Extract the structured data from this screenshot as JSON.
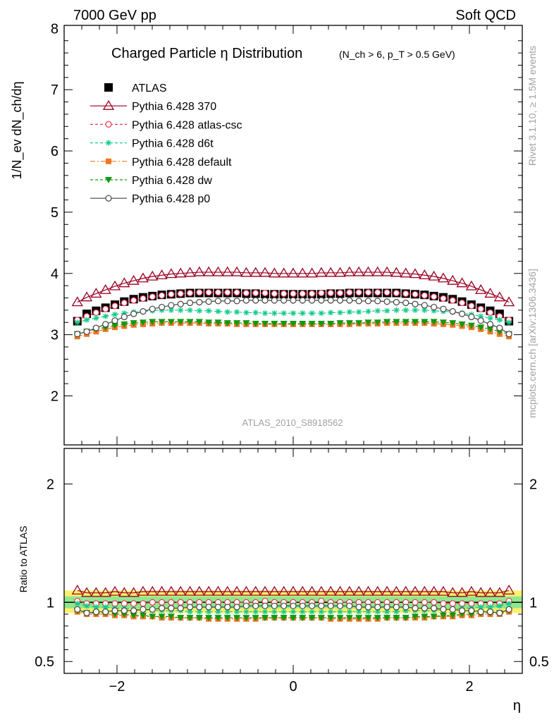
{
  "header": {
    "left": "7000 GeV pp",
    "right": "Soft QCD",
    "title": "Charged Particle η Distribution",
    "subtitle": "(N_ch > 6, p_T > 0.5 GeV)",
    "analysis": "ATLAS_2010_S8918562",
    "side_rivet": "Rivet 3.1.10, ≥ 1.5M events",
    "side_url": "mcplots.cern.ch [arXiv:1306.3436]"
  },
  "axes": {
    "ylabel_main": "1/N_ev dN_ch/dη",
    "ylabel_ratio": "Ratio to ATLAS",
    "xlabel": "η",
    "main_yticks": [
      "2",
      "3",
      "4",
      "5",
      "6",
      "7",
      "8"
    ],
    "ratio_yticks": [
      "0.5",
      "1",
      "2"
    ],
    "xticks": [
      "−2",
      "0",
      "2"
    ]
  },
  "colors": {
    "atlas": "#000000",
    "p370": "#990022",
    "atlas_csc": "#ee3355",
    "d6t": "#11cc88",
    "default": "#ee7722",
    "dw": "#119911",
    "p0": "#444444"
  },
  "chart_data": [
    {
      "type": "scatter",
      "title": "Charged Particle η Distribution",
      "xlabel": "η",
      "ylabel": "1/N_ev dN_ch/dη",
      "xlim": [
        -2.6,
        2.6
      ],
      "ylim": [
        1.2,
        8.05
      ],
      "series": [
        {
          "name": "ATLAS",
          "marker": "square",
          "values": [
            3.22,
            3.34,
            3.39,
            3.44,
            3.49,
            3.54,
            3.58,
            3.61,
            3.63,
            3.65,
            3.66,
            3.67,
            3.68,
            3.68,
            3.68,
            3.68,
            3.68,
            3.68,
            3.67,
            3.67,
            3.66,
            3.66,
            3.66,
            3.66,
            3.66,
            3.66,
            3.66,
            3.67,
            3.67,
            3.68,
            3.68,
            3.68,
            3.68,
            3.68,
            3.68,
            3.67,
            3.66,
            3.65,
            3.63,
            3.61,
            3.58,
            3.54,
            3.49,
            3.44,
            3.39,
            3.34,
            3.22
          ]
        },
        {
          "name": "Pythia 6.428 370",
          "marker": "triangle",
          "values": [
            3.53,
            3.61,
            3.67,
            3.73,
            3.79,
            3.84,
            3.88,
            3.92,
            3.95,
            3.97,
            3.99,
            4.0,
            4.01,
            4.02,
            4.02,
            4.02,
            4.02,
            4.02,
            4.01,
            4.01,
            4.01,
            4.0,
            4.0,
            4.0,
            4.0,
            4.0,
            4.01,
            4.01,
            4.01,
            4.02,
            4.02,
            4.02,
            4.02,
            4.02,
            4.01,
            4.0,
            3.99,
            3.97,
            3.95,
            3.92,
            3.88,
            3.84,
            3.79,
            3.73,
            3.67,
            3.61,
            3.53
          ]
        },
        {
          "name": "Pythia 6.428 atlas-csc",
          "marker": "circle-open",
          "values": [
            3.24,
            3.3,
            3.36,
            3.42,
            3.47,
            3.52,
            3.56,
            3.59,
            3.62,
            3.64,
            3.66,
            3.67,
            3.68,
            3.69,
            3.69,
            3.69,
            3.69,
            3.69,
            3.68,
            3.68,
            3.68,
            3.67,
            3.67,
            3.67,
            3.67,
            3.67,
            3.68,
            3.68,
            3.68,
            3.69,
            3.69,
            3.69,
            3.69,
            3.69,
            3.68,
            3.67,
            3.66,
            3.64,
            3.62,
            3.59,
            3.56,
            3.52,
            3.47,
            3.42,
            3.36,
            3.3,
            3.24
          ]
        },
        {
          "name": "Pythia 6.428 d6t",
          "marker": "star",
          "values": [
            3.2,
            3.24,
            3.27,
            3.3,
            3.33,
            3.35,
            3.37,
            3.38,
            3.39,
            3.4,
            3.4,
            3.4,
            3.4,
            3.39,
            3.39,
            3.38,
            3.37,
            3.37,
            3.36,
            3.36,
            3.35,
            3.35,
            3.35,
            3.35,
            3.35,
            3.35,
            3.35,
            3.36,
            3.36,
            3.37,
            3.37,
            3.38,
            3.39,
            3.39,
            3.4,
            3.4,
            3.4,
            3.4,
            3.39,
            3.38,
            3.37,
            3.35,
            3.33,
            3.3,
            3.27,
            3.24,
            3.2
          ]
        },
        {
          "name": "Pythia 6.428 default",
          "marker": "square-small",
          "values": [
            2.97,
            3.01,
            3.05,
            3.09,
            3.12,
            3.14,
            3.16,
            3.17,
            3.18,
            3.19,
            3.19,
            3.19,
            3.19,
            3.19,
            3.18,
            3.18,
            3.18,
            3.17,
            3.17,
            3.17,
            3.17,
            3.17,
            3.17,
            3.17,
            3.17,
            3.17,
            3.17,
            3.17,
            3.17,
            3.17,
            3.18,
            3.18,
            3.18,
            3.19,
            3.19,
            3.19,
            3.19,
            3.19,
            3.18,
            3.17,
            3.16,
            3.14,
            3.12,
            3.09,
            3.05,
            3.01,
            2.97
          ]
        },
        {
          "name": "Pythia 6.428 dw",
          "marker": "triangle-down",
          "values": [
            3.01,
            3.05,
            3.09,
            3.12,
            3.15,
            3.17,
            3.19,
            3.2,
            3.21,
            3.21,
            3.21,
            3.21,
            3.21,
            3.21,
            3.2,
            3.2,
            3.19,
            3.19,
            3.19,
            3.18,
            3.18,
            3.18,
            3.18,
            3.18,
            3.18,
            3.18,
            3.18,
            3.18,
            3.19,
            3.19,
            3.19,
            3.2,
            3.2,
            3.21,
            3.21,
            3.21,
            3.21,
            3.21,
            3.21,
            3.2,
            3.19,
            3.17,
            3.15,
            3.12,
            3.09,
            3.05,
            3.01
          ]
        },
        {
          "name": "Pythia 6.428 p0",
          "marker": "circle-open",
          "values": [
            3.01,
            3.05,
            3.11,
            3.17,
            3.23,
            3.29,
            3.34,
            3.38,
            3.42,
            3.45,
            3.48,
            3.5,
            3.52,
            3.53,
            3.54,
            3.55,
            3.55,
            3.55,
            3.56,
            3.56,
            3.56,
            3.56,
            3.56,
            3.56,
            3.56,
            3.56,
            3.56,
            3.56,
            3.56,
            3.56,
            3.55,
            3.55,
            3.55,
            3.54,
            3.53,
            3.52,
            3.5,
            3.48,
            3.45,
            3.42,
            3.38,
            3.34,
            3.29,
            3.23,
            3.17,
            3.11,
            3.01
          ]
        }
      ]
    },
    {
      "type": "scatter",
      "title": "",
      "xlabel": "η",
      "ylabel": "Ratio to ATLAS",
      "xlim": [
        -2.6,
        2.6
      ],
      "ylim": [
        0.4,
        2.3
      ],
      "band": {
        "inner": [
          0.95,
          1.05
        ],
        "outer": [
          0.91,
          1.1
        ]
      },
      "series": [
        {
          "name": "Pythia 6.428 370",
          "values": [
            1.1,
            1.08,
            1.08,
            1.08,
            1.09,
            1.08,
            1.08,
            1.09,
            1.09,
            1.09,
            1.09,
            1.09,
            1.09,
            1.09,
            1.09,
            1.09,
            1.09,
            1.09,
            1.09,
            1.09,
            1.09,
            1.09,
            1.09,
            1.09,
            1.09,
            1.09,
            1.09,
            1.09,
            1.09,
            1.09,
            1.09,
            1.09,
            1.09,
            1.09,
            1.09,
            1.09,
            1.09,
            1.09,
            1.09,
            1.09,
            1.08,
            1.08,
            1.09,
            1.08,
            1.08,
            1.08,
            1.1
          ]
        },
        {
          "name": "Pythia 6.428 atlas-csc",
          "values": [
            1.01,
            0.99,
            0.99,
            0.99,
            0.99,
            0.99,
            0.99,
            0.99,
            1.0,
            1.0,
            1.0,
            1.0,
            1.0,
            1.0,
            1.0,
            1.0,
            1.0,
            1.0,
            1.0,
            1.0,
            1.01,
            1.0,
            1.0,
            1.0,
            1.0,
            1.0,
            1.01,
            1.0,
            1.0,
            1.0,
            1.0,
            1.0,
            1.0,
            1.0,
            1.0,
            1.0,
            1.0,
            1.0,
            1.0,
            0.99,
            0.99,
            0.99,
            0.99,
            0.99,
            0.99,
            0.99,
            1.01
          ]
        },
        {
          "name": "Pythia 6.428 d6t",
          "values": [
            0.99,
            0.97,
            0.96,
            0.96,
            0.95,
            0.95,
            0.94,
            0.94,
            0.93,
            0.93,
            0.93,
            0.93,
            0.92,
            0.92,
            0.92,
            0.92,
            0.92,
            0.92,
            0.92,
            0.92,
            0.92,
            0.92,
            0.92,
            0.92,
            0.92,
            0.92,
            0.92,
            0.92,
            0.92,
            0.92,
            0.92,
            0.92,
            0.92,
            0.92,
            0.92,
            0.93,
            0.93,
            0.93,
            0.93,
            0.94,
            0.94,
            0.95,
            0.95,
            0.96,
            0.96,
            0.97,
            0.99
          ]
        },
        {
          "name": "Pythia 6.428 default",
          "values": [
            0.92,
            0.9,
            0.9,
            0.9,
            0.89,
            0.89,
            0.88,
            0.88,
            0.88,
            0.87,
            0.87,
            0.87,
            0.87,
            0.87,
            0.86,
            0.86,
            0.86,
            0.86,
            0.86,
            0.86,
            0.87,
            0.87,
            0.87,
            0.87,
            0.87,
            0.87,
            0.87,
            0.86,
            0.86,
            0.86,
            0.86,
            0.86,
            0.86,
            0.87,
            0.87,
            0.87,
            0.87,
            0.87,
            0.88,
            0.88,
            0.88,
            0.89,
            0.89,
            0.9,
            0.9,
            0.9,
            0.92
          ]
        },
        {
          "name": "Pythia 6.428 dw",
          "values": [
            0.93,
            0.91,
            0.91,
            0.91,
            0.9,
            0.9,
            0.89,
            0.89,
            0.88,
            0.88,
            0.88,
            0.87,
            0.87,
            0.87,
            0.87,
            0.87,
            0.87,
            0.87,
            0.87,
            0.87,
            0.87,
            0.87,
            0.87,
            0.87,
            0.87,
            0.87,
            0.87,
            0.87,
            0.87,
            0.87,
            0.87,
            0.87,
            0.87,
            0.87,
            0.87,
            0.87,
            0.88,
            0.88,
            0.88,
            0.89,
            0.89,
            0.9,
            0.9,
            0.91,
            0.91,
            0.91,
            0.93
          ]
        },
        {
          "name": "Pythia 6.428 p0",
          "values": [
            0.94,
            0.91,
            0.92,
            0.92,
            0.93,
            0.93,
            0.93,
            0.94,
            0.94,
            0.95,
            0.95,
            0.95,
            0.96,
            0.96,
            0.96,
            0.96,
            0.96,
            0.96,
            0.97,
            0.97,
            0.97,
            0.97,
            0.97,
            0.97,
            0.97,
            0.97,
            0.97,
            0.97,
            0.97,
            0.97,
            0.96,
            0.96,
            0.96,
            0.96,
            0.96,
            0.96,
            0.95,
            0.95,
            0.95,
            0.94,
            0.94,
            0.93,
            0.93,
            0.92,
            0.92,
            0.91,
            0.94
          ]
        }
      ]
    }
  ]
}
